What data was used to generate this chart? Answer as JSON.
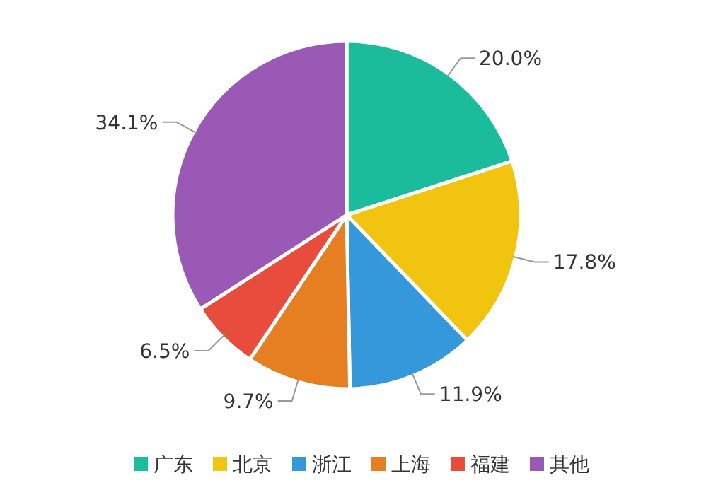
{
  "chart_data": {
    "type": "pie",
    "categories": [
      "广东",
      "北京",
      "浙江",
      "上海",
      "福建",
      "其他"
    ],
    "values": [
      20.0,
      17.8,
      11.9,
      9.7,
      6.5,
      34.1
    ],
    "colors": [
      "#1abc9c",
      "#f1c40f",
      "#3498db",
      "#e67e22",
      "#e74c3c",
      "#9b59b6"
    ],
    "value_labels": [
      "20.0%",
      "17.8%",
      "11.9%",
      "9.7%",
      "6.5%",
      "34.1%"
    ],
    "legend": "bottom"
  }
}
